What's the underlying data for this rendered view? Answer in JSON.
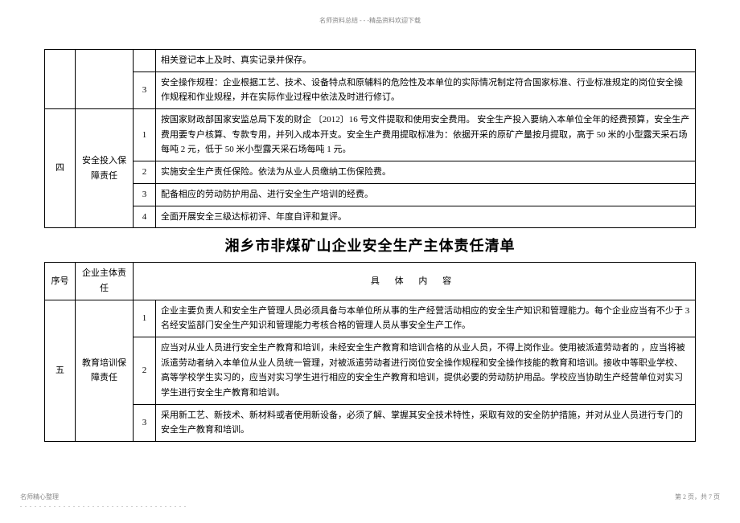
{
  "header_note": "名师资料总结 - - -精品资料欢迎下载",
  "table1": {
    "row_prev_last": "相关登记本上及时、真实记录并保存。",
    "row_prev_3": "安全操作规程：企业根据工艺、技术、设备特点和原辅料的危险性及本单位的实际情况制定符合国家标准、行业标准规定的岗位安全操作规程和作业规程，并在实际作业过程中依法及时进行修订。",
    "section4_num": "四",
    "section4_resp": "安全投入保障责任",
    "section4_items": [
      "按国家财政部国家安监总局下发的财企 〔2012〕16 号文件提取和使用安全费用。   安全生产投入要纳入本单位全年的经费预算，安全生产费用要专户核算、专款专用，并列入成本开支。安全生产费用提取标准为：依据开采的原矿产量按月提取，高于   50 米的小型露天采石场每吨   2 元，低于 50 米小型露天采石场每吨   1 元。",
      "实施安全生产责任保险。依法为从业人员缴纳工伤保险费。",
      "配备相应的劳动防护用品、进行安全生产培训的经费。",
      "全面开展安全三级达标初评、年度自评和复评。"
    ]
  },
  "main_title": "湘乡市非煤矿山企业安全生产主体责任清单",
  "table2": {
    "header": {
      "col1": "序号",
      "col2": "企业主体责   任",
      "col3": "具   体   内   容"
    },
    "section5_num": "五",
    "section5_resp": "教育培训保障责任",
    "section5_items": [
      "企业主要负责人和安全生产管理人员必须具备与本单位所从事的生产经营活动相应的安全生产知识和管理能力。每个企业应当有不少于   3 名经安监部门安全生产知识和管理能力考核合格的管理人员从事安全生产工作。",
      "   应当对从业人员进行安全生产教育和培训，未经安全生产教育和培训合格的从业人员，不得上岗作业。使用被派遣劳动者的 ，应当将被派遣劳动者纳入本单位从业人员统一管理，对被派遣劳动者进行岗位安全操作规程和安全操作技能的教育和培训。接收中等职业学校、高等学校学生实习的，应当对实习学生进行相应的安全生产教育和培训，提供必要的劳动防护用品。学校应当协助生产经营单位对实习学生进行安全生产教育和培训。",
      "采用新工艺、新技术、新材料或者使用新设备，必须了解、掌握其安全技术特性，采取有效的安全防护措施，并对从业人员进行专门的安全生产教育和培训。"
    ]
  },
  "footer_left": "名师精心整理",
  "footer_dots": ". . . . . . . . . . . . . . . . . . . . . . . . . . . . . . . . . . .",
  "footer_right": "第 2 页，共 7 页"
}
